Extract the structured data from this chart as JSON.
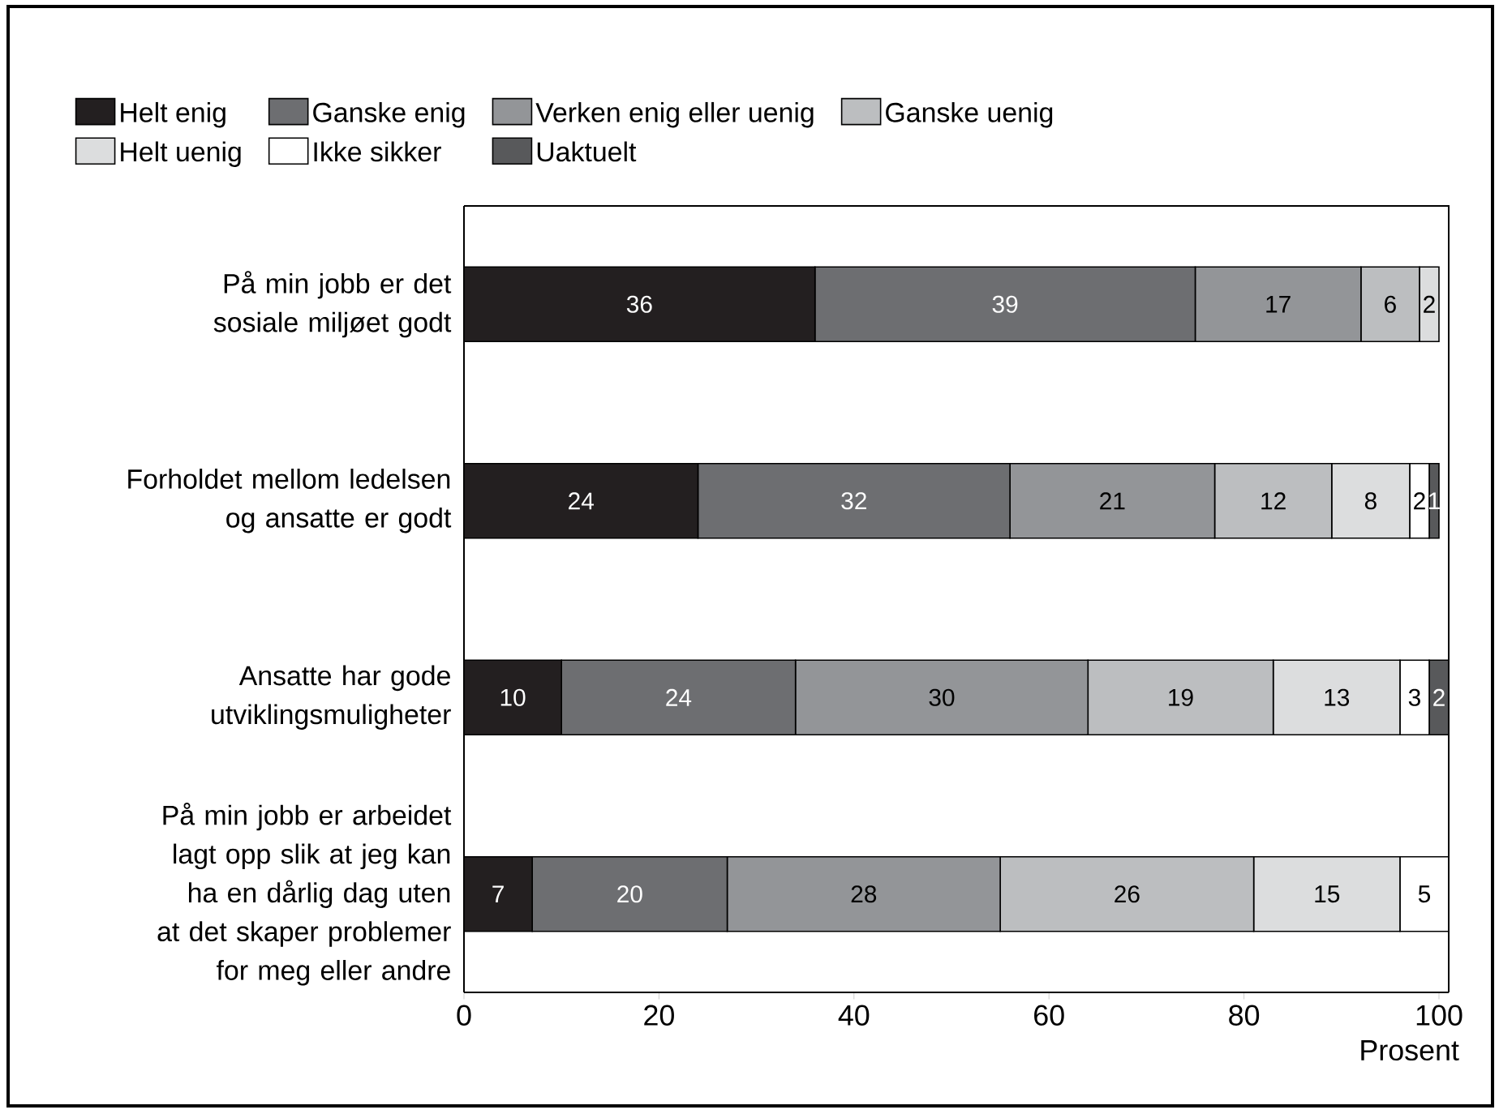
{
  "chart_data": {
    "type": "bar",
    "orientation": "horizontal",
    "stacked": true,
    "data_labels": true,
    "legend": "top",
    "xlabel": "Prosent",
    "categories": [
      "På min jobb er det sosiale miljøet godt",
      "Forholdet mellom ledelsen og ansatte er godt",
      "Ansatte har gode utviklingsmuligheter",
      "På min jobb er arbeidet lagt opp slik at jeg kan ha en dårlig dag uten at det skaper problemer for meg eller andre"
    ],
    "xlim": [
      0,
      101
    ],
    "xticks": [
      0,
      20,
      40,
      60,
      80,
      100
    ],
    "series": [
      {
        "name": "Helt enig",
        "color": "#231f20",
        "values": [
          36,
          24,
          10,
          7
        ]
      },
      {
        "name": "Ganske enig",
        "color": "#6d6e71",
        "values": [
          39,
          32,
          24,
          20
        ]
      },
      {
        "name": "Verken enig eller uenig",
        "color": "#939598",
        "values": [
          17,
          21,
          30,
          28
        ]
      },
      {
        "name": "Ganske uenig",
        "color": "#bcbec0",
        "values": [
          6,
          12,
          19,
          26
        ]
      },
      {
        "name": "Helt uenig",
        "color": "#dcddde",
        "values": [
          2,
          8,
          13,
          15
        ]
      },
      {
        "name": "Ikke sikker",
        "color": "#ffffff",
        "values": [
          null,
          2,
          3,
          5
        ]
      },
      {
        "name": "Uaktuelt",
        "color": "#58595b",
        "values": [
          null,
          1,
          2,
          null
        ]
      }
    ]
  }
}
